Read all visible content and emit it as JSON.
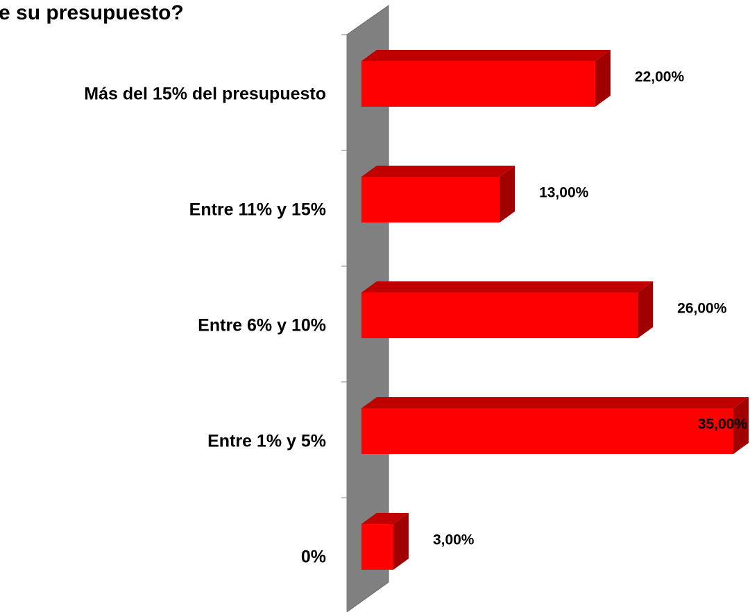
{
  "chart_data": {
    "type": "bar",
    "title": "e su presupuesto?",
    "categories": [
      "Más del 15% del presupuesto",
      "Entre 11% y 15%",
      "Entre 6% y 10%",
      "Entre 1% y 5%",
      "0%"
    ],
    "values": [
      22,
      13,
      26,
      35,
      3
    ],
    "value_labels": [
      "22,00%",
      "13,00%",
      "26,00%",
      "35,00%",
      "3,00%"
    ],
    "color": "#ff0000"
  }
}
